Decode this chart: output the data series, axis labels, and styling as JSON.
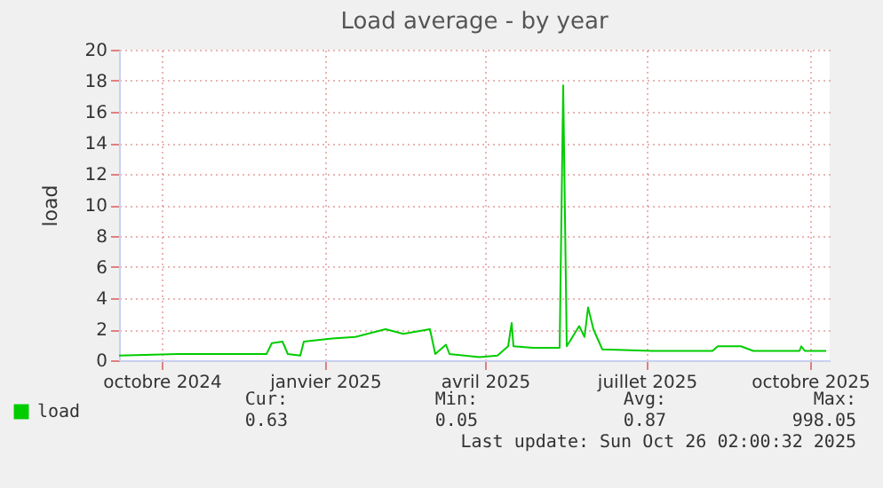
{
  "chart_data": {
    "type": "line",
    "title": "Load average - by year",
    "ylabel": "load",
    "x": [
      "2024-09-21",
      "2024-10-24",
      "2024-12-13",
      "2024-12-16",
      "2024-12-22",
      "2024-12-25",
      "2025-01-01",
      "2025-01-03",
      "2025-01-19",
      "2025-02-01",
      "2025-02-18",
      "2025-02-28",
      "2025-03-15",
      "2025-03-18",
      "2025-03-24",
      "2025-03-26",
      "2025-04-12",
      "2025-04-22",
      "2025-04-28",
      "2025-04-30",
      "2025-05-01",
      "2025-05-12",
      "2025-05-27",
      "2025-05-29",
      "2025-05-31",
      "2025-06-07",
      "2025-06-10",
      "2025-06-12",
      "2025-06-15",
      "2025-06-20",
      "2025-07-18",
      "2025-08-21",
      "2025-08-24",
      "2025-09-06",
      "2025-09-13",
      "2025-10-09",
      "2025-10-10",
      "2025-10-12",
      "2025-10-24"
    ],
    "series": [
      {
        "name": "load",
        "color": "#00cc00",
        "values": [
          0.3,
          0.4,
          0.4,
          1.1,
          1.2,
          0.4,
          0.3,
          1.2,
          1.4,
          1.5,
          2.0,
          1.7,
          2.0,
          0.4,
          1.0,
          0.4,
          0.2,
          0.3,
          0.9,
          2.4,
          0.9,
          0.8,
          0.8,
          17.7,
          0.9,
          2.2,
          1.5,
          3.4,
          2.0,
          0.7,
          0.6,
          0.6,
          0.9,
          0.9,
          0.6,
          0.6,
          0.9,
          0.6,
          0.6
        ]
      }
    ],
    "xlim": [
      "2024-09-21",
      "2025-10-26"
    ],
    "xticks": [
      {
        "value": "2024-10-15",
        "label": "octobre 2024"
      },
      {
        "value": "2025-01-15",
        "label": "janvier 2025"
      },
      {
        "value": "2025-04-15",
        "label": "avril 2025"
      },
      {
        "value": "2025-07-15",
        "label": "juillet 2025"
      },
      {
        "value": "2025-10-15",
        "label": "octobre 2025"
      }
    ],
    "ylim": [
      0,
      20
    ],
    "yticks": [
      0,
      2,
      4,
      6,
      8,
      10,
      12,
      14,
      16,
      18,
      20
    ],
    "grid": true,
    "legend": "bottom",
    "marker": "none",
    "line_style": "solid",
    "annotations": [
      "Cur:",
      "Min:",
      "Avg:",
      "Max:",
      "0.63",
      "0.05",
      "0.87",
      "998.05",
      "Last update: Sun Oct 26 02:00:32 2025"
    ]
  }
}
